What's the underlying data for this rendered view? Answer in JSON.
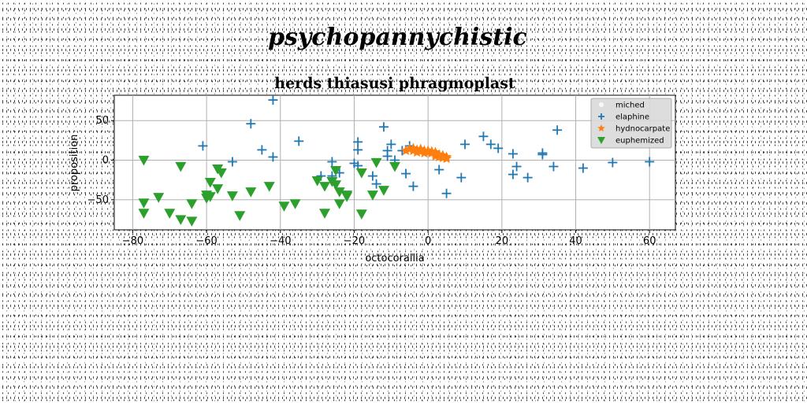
{
  "suptitle": "psychopannychistic",
  "chart_data": {
    "type": "scatter",
    "title": "herds thiasusi phragmoplast",
    "xlabel": "octocorallia",
    "ylabel": "proposition",
    "xlim": [
      -85,
      67
    ],
    "ylim": [
      -88,
      82
    ],
    "xticks": [
      -80,
      -60,
      -40,
      -20,
      0,
      20,
      40,
      60
    ],
    "yticks": [
      -50,
      0,
      50
    ],
    "grid": true,
    "legend_position": "upper right",
    "series": [
      {
        "name": "miched",
        "marker": "none",
        "color": "#ffffff",
        "points": []
      },
      {
        "name": "elaphine",
        "marker": "plus",
        "color": "#1f77b4",
        "points": [
          [
            -42,
            76
          ],
          [
            -48,
            46
          ],
          [
            -61,
            18
          ],
          [
            -45,
            13
          ],
          [
            -42,
            4
          ],
          [
            -53,
            -2
          ],
          [
            -35,
            24
          ],
          [
            -29,
            -20
          ],
          [
            -26,
            -2
          ],
          [
            -26,
            -20
          ],
          [
            -19,
            23
          ],
          [
            -19,
            13
          ],
          [
            -19,
            -7
          ],
          [
            -15,
            -20
          ],
          [
            -14,
            -30
          ],
          [
            -12,
            42
          ],
          [
            -11,
            12
          ],
          [
            -11,
            5
          ],
          [
            -10,
            20
          ],
          [
            -9,
            0
          ],
          [
            -7,
            12
          ],
          [
            -6,
            -17
          ],
          [
            -4,
            -33
          ],
          [
            -5,
            18
          ],
          [
            3,
            -12
          ],
          [
            5,
            -42
          ],
          [
            9,
            -22
          ],
          [
            10,
            20
          ],
          [
            15,
            30
          ],
          [
            17,
            20
          ],
          [
            19,
            15
          ],
          [
            23,
            8
          ],
          [
            24,
            -8
          ],
          [
            23,
            -18
          ],
          [
            27,
            -22
          ],
          [
            31,
            7
          ],
          [
            31,
            9
          ],
          [
            34,
            -8
          ],
          [
            35,
            38
          ],
          [
            42,
            -10
          ],
          [
            50,
            -3
          ],
          [
            60,
            -2
          ],
          [
            -20,
            -4
          ],
          [
            -24,
            -16
          ]
        ]
      },
      {
        "name": "hydnocarpate",
        "marker": "star",
        "color": "#ff7f0e",
        "points": [
          [
            -5,
            14
          ],
          [
            -4,
            12
          ],
          [
            -3,
            13
          ],
          [
            -2,
            11
          ],
          [
            -1,
            12
          ],
          [
            0,
            10
          ],
          [
            1,
            9
          ],
          [
            2,
            10
          ],
          [
            3,
            7
          ],
          [
            4,
            6
          ],
          [
            5,
            4
          ],
          [
            -4,
            15
          ],
          [
            -2,
            14
          ],
          [
            0,
            12
          ],
          [
            2,
            8
          ],
          [
            4,
            5
          ],
          [
            5,
            2
          ],
          [
            -6,
            12
          ],
          [
            -3,
            10
          ],
          [
            1,
            11
          ],
          [
            3,
            4
          ],
          [
            -1,
            9
          ],
          [
            2,
            5
          ],
          [
            4,
            3
          ]
        ]
      },
      {
        "name": "euphemized",
        "marker": "triangle-down",
        "color": "#2ca02c",
        "points": [
          [
            -77,
            0
          ],
          [
            -67,
            -8
          ],
          [
            -57,
            -11
          ],
          [
            -56,
            -16
          ],
          [
            -59,
            -28
          ],
          [
            -57,
            -36
          ],
          [
            -59,
            -46
          ],
          [
            -60,
            -48
          ],
          [
            -53,
            -45
          ],
          [
            -48,
            -40
          ],
          [
            -43,
            -33
          ],
          [
            -36,
            -55
          ],
          [
            -39,
            -58
          ],
          [
            -30,
            -26
          ],
          [
            -28,
            -33
          ],
          [
            -25,
            -13
          ],
          [
            -25,
            -31
          ],
          [
            -24,
            -40
          ],
          [
            -22,
            -46
          ],
          [
            -24,
            -55
          ],
          [
            -28,
            -67
          ],
          [
            -18,
            -16
          ],
          [
            -14,
            -3
          ],
          [
            -15,
            -44
          ],
          [
            -12,
            -38
          ],
          [
            -18,
            -68
          ],
          [
            -9,
            -8
          ],
          [
            -73,
            -47
          ],
          [
            -77,
            -54
          ],
          [
            -77,
            -67
          ],
          [
            -70,
            -67
          ],
          [
            -67,
            -75
          ],
          [
            -64,
            -77
          ],
          [
            -64,
            -55
          ],
          [
            -51,
            -70
          ],
          [
            -60,
            -44
          ],
          [
            -22,
            -44
          ],
          [
            -26,
            -27
          ]
        ]
      }
    ]
  }
}
